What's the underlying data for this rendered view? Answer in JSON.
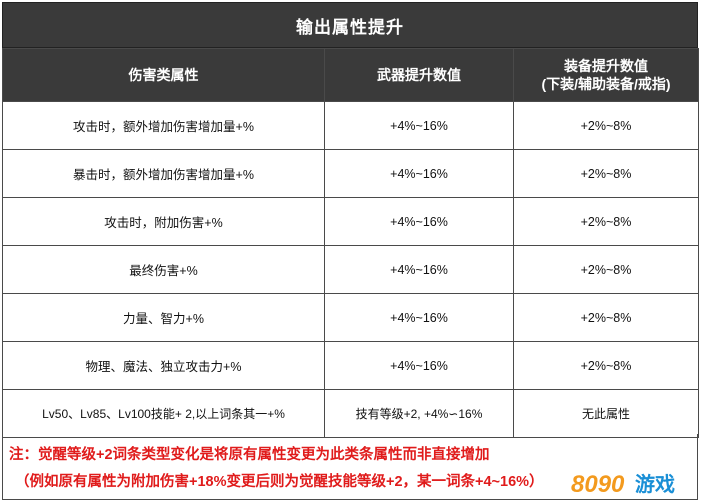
{
  "title": "输出属性提升",
  "headers": {
    "col1": "伤害类属性",
    "col2": "武器提升数值",
    "col3_line1": "装备提升数值",
    "col3_line2": "(下装/辅助装备/戒指)"
  },
  "rows": [
    {
      "attr": "攻击时，额外增加伤害增加量+%",
      "weapon": "+4%~16%",
      "gear": "+2%~8%"
    },
    {
      "attr": "暴击时，额外增加伤害增加量+%",
      "weapon": "+4%~16%",
      "gear": "+2%~8%"
    },
    {
      "attr": "攻击时，附加伤害+%",
      "weapon": "+4%~16%",
      "gear": "+2%~8%"
    },
    {
      "attr": "最终伤害+%",
      "weapon": "+4%~16%",
      "gear": "+2%~8%"
    },
    {
      "attr": "力量、智力+%",
      "weapon": "+4%~16%",
      "gear": "+2%~8%"
    },
    {
      "attr": "物理、魔法、独立攻击力+%",
      "weapon": "+4%~16%",
      "gear": "+2%~8%"
    },
    {
      "attr": "Lv50、Lv85、Lv100技能+ 2,以上词条其一+%",
      "weapon": "技有等级+2, +4%∽16%",
      "gear": "无此属性"
    }
  ],
  "note": {
    "line1": "注：觉醒等级+2词条类型变化是将原有属性变更为此类条属性而非直接增加",
    "line2": "（例如原有属性为附加伤害+18%变更后则为觉醒技能等级+2，某一词条+4~16%）"
  },
  "logo": {
    "number": "8090",
    "text": "游戏",
    "colors": {
      "orange": "#f39a1e",
      "blue": "#1a8fd6"
    }
  },
  "colors": {
    "header_bg": "#3a3a3a",
    "note_red": "#e01b1b"
  }
}
